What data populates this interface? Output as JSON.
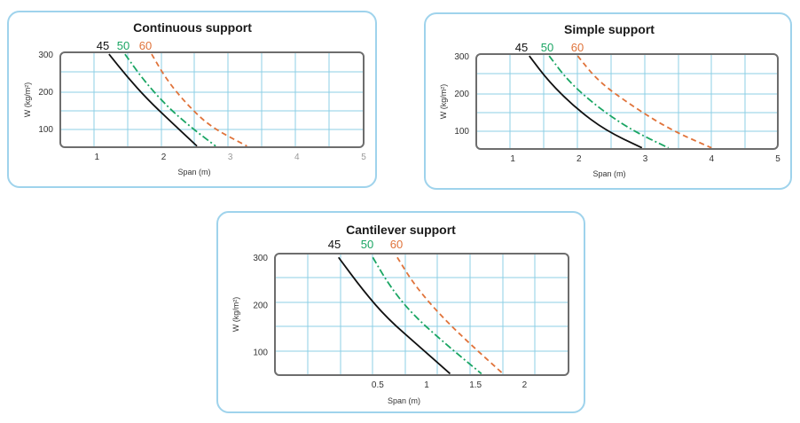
{
  "chart_data": [
    {
      "id": "continuous",
      "type": "line",
      "title": "Continuous support",
      "xlabel": "Span (m)",
      "ylabel": "W (kg/m²)",
      "xlim": [
        0.45,
        5
      ],
      "ylim": [
        50,
        305
      ],
      "x_ticks": [
        {
          "v": 1,
          "label": "1"
        },
        {
          "v": 2,
          "label": "2"
        },
        {
          "v": 3,
          "label": "3"
        },
        {
          "v": 4,
          "label": "4"
        },
        {
          "v": 5,
          "label": "5"
        }
      ],
      "y_ticks": [
        {
          "v": 100,
          "label": "100"
        },
        {
          "v": 200,
          "label": "200"
        },
        {
          "v": 300,
          "label": "300"
        }
      ],
      "series": [
        {
          "name": "45",
          "color": "#111111",
          "dash": "solid",
          "points": [
            [
              1.18,
              300
            ],
            [
              1.45,
              240
            ],
            [
              1.75,
              180
            ],
            [
              2.1,
              120
            ],
            [
              2.5,
              53
            ]
          ]
        },
        {
          "name": "50",
          "color": "#1aa563",
          "dash": "dashdot",
          "points": [
            [
              1.42,
              300
            ],
            [
              1.7,
              230
            ],
            [
              2.05,
              160
            ],
            [
              2.4,
              105
            ],
            [
              2.78,
              53
            ]
          ]
        },
        {
          "name": "60",
          "color": "#e0733a",
          "dash": "dashed",
          "points": [
            [
              1.82,
              300
            ],
            [
              2.05,
              230
            ],
            [
              2.35,
              165
            ],
            [
              2.7,
              105
            ],
            [
              3.25,
              53
            ]
          ]
        }
      ]
    },
    {
      "id": "simple",
      "type": "line",
      "title": "Simple support",
      "xlabel": "Span (m)",
      "ylabel": "W (kg/m²)",
      "xlim": [
        0.45,
        5
      ],
      "ylim": [
        50,
        305
      ],
      "x_ticks": [
        {
          "v": 1,
          "label": "1"
        },
        {
          "v": 2,
          "label": "2"
        },
        {
          "v": 3,
          "label": "3"
        },
        {
          "v": 4,
          "label": "4"
        },
        {
          "v": 5,
          "label": "5"
        }
      ],
      "y_ticks": [
        {
          "v": 100,
          "label": "100"
        },
        {
          "v": 200,
          "label": "200"
        },
        {
          "v": 300,
          "label": "300"
        }
      ],
      "series": [
        {
          "name": "45",
          "color": "#111111",
          "dash": "solid",
          "points": [
            [
              1.25,
              300
            ],
            [
              1.55,
              230
            ],
            [
              1.95,
              160
            ],
            [
              2.4,
              100
            ],
            [
              2.95,
              53
            ]
          ]
        },
        {
          "name": "50",
          "color": "#1aa563",
          "dash": "dashdot",
          "points": [
            [
              1.55,
              300
            ],
            [
              1.85,
              230
            ],
            [
              2.3,
              160
            ],
            [
              2.8,
              100
            ],
            [
              3.35,
              53
            ]
          ]
        },
        {
          "name": "60",
          "color": "#e0733a",
          "dash": "dashed",
          "points": [
            [
              1.98,
              300
            ],
            [
              2.3,
              230
            ],
            [
              2.85,
              160
            ],
            [
              3.4,
              100
            ],
            [
              4.0,
              53
            ]
          ]
        }
      ]
    },
    {
      "id": "cantilever",
      "type": "line",
      "title": "Cantilever  support",
      "xlabel": "Span (m)",
      "ylabel": "W (kg/m²)",
      "xlim": [
        -0.55,
        2.45
      ],
      "ylim": [
        50,
        308
      ],
      "x_ticks": [
        {
          "v": 0.5,
          "label": "0.5"
        },
        {
          "v": 1,
          "label": "1"
        },
        {
          "v": 1.5,
          "label": "1.5"
        },
        {
          "v": 2,
          "label": "2"
        }
      ],
      "y_ticks": [
        {
          "v": 100,
          "label": "100"
        },
        {
          "v": 200,
          "label": "200"
        },
        {
          "v": 300,
          "label": "300"
        }
      ],
      "series": [
        {
          "name": "45",
          "color": "#111111",
          "dash": "solid",
          "points": [
            [
              0.1,
              300
            ],
            [
              0.35,
              230
            ],
            [
              0.6,
              170
            ],
            [
              0.93,
              110
            ],
            [
              1.24,
              53
            ]
          ]
        },
        {
          "name": "50",
          "color": "#1aa563",
          "dash": "dashdot",
          "points": [
            [
              0.45,
              300
            ],
            [
              0.62,
              240
            ],
            [
              0.85,
              180
            ],
            [
              1.2,
              115
            ],
            [
              1.56,
              53
            ]
          ]
        },
        {
          "name": "60",
          "color": "#e0733a",
          "dash": "dashed",
          "points": [
            [
              0.7,
              300
            ],
            [
              0.88,
              240
            ],
            [
              1.15,
              175
            ],
            [
              1.45,
              115
            ],
            [
              1.78,
              53
            ]
          ]
        }
      ]
    }
  ]
}
